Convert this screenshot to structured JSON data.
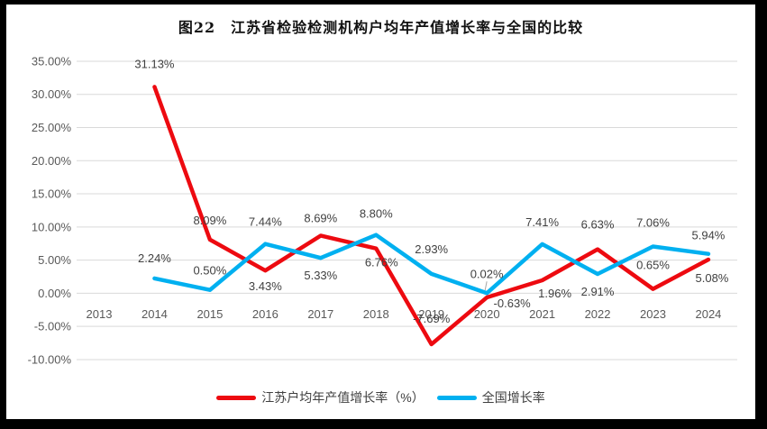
{
  "title": "图22　江苏省检验检测机构户均年产值增长率与全国的比较",
  "legend": {
    "items": [
      {
        "label": "江苏户均年产值增长率（%）",
        "color": "#ed0a10",
        "name": "jiangsu-series"
      },
      {
        "label": "全国增长率",
        "color": "#00b0f0",
        "name": "national-series"
      }
    ]
  },
  "colors": {
    "gridline": "#d9d9d9",
    "axis_text": "#595959",
    "data_label_text": "#404040",
    "frame_border": "#000000",
    "background": "#ffffff"
  },
  "chart_data": {
    "type": "line",
    "title": "图22　江苏省检验检测机构户均年产值增长率与全国的比较",
    "categories": [
      "2013",
      "2014",
      "2015",
      "2016",
      "2017",
      "2018",
      "2019",
      "2020",
      "2021",
      "2022",
      "2023",
      "2024"
    ],
    "xlabel": "",
    "ylabel": "",
    "unit": "%",
    "y_axis": {
      "min": -10,
      "max": 35,
      "step": 5,
      "tick_labels": [
        "35.00%",
        "30.00%",
        "25.00%",
        "20.00%",
        "15.00%",
        "10.00%",
        "5.00%",
        "0.00%",
        "-5.00%",
        "-10.00%"
      ]
    },
    "grid": true,
    "legend_position": "bottom",
    "series": [
      {
        "name": "江苏户均年产值增长率（%）",
        "color": "#ed0a10",
        "values": [
          null,
          31.13,
          8.09,
          3.43,
          8.69,
          6.76,
          -7.69,
          -0.63,
          1.96,
          6.63,
          0.65,
          5.08
        ],
        "labels": [
          "",
          "31.13%",
          "8.09%",
          "3.43%",
          "8.69%",
          "6.76%",
          "-7.69%",
          "-0.63%",
          "1.96%",
          "6.63%",
          "0.65%",
          "5.08%"
        ],
        "label_offsets": [
          [
            0,
            0
          ],
          [
            0,
            -21
          ],
          [
            0,
            -17
          ],
          [
            0,
            22
          ],
          [
            0,
            -15
          ],
          [
            6,
            20
          ],
          [
            0,
            -24
          ],
          [
            28,
            11
          ],
          [
            14,
            19
          ],
          [
            0,
            -23
          ],
          [
            0,
            -22
          ],
          [
            4,
            25
          ]
        ]
      },
      {
        "name": "全国增长率",
        "color": "#00b0f0",
        "values": [
          null,
          2.24,
          0.5,
          7.44,
          5.33,
          8.8,
          2.93,
          0.02,
          7.41,
          2.91,
          7.06,
          5.94
        ],
        "labels": [
          "",
          "2.24%",
          "0.50%",
          "7.44%",
          "5.33%",
          "8.80%",
          "2.93%",
          "0.02%",
          "7.41%",
          "2.91%",
          "7.06%",
          "5.94%"
        ],
        "label_offsets": [
          [
            0,
            0
          ],
          [
            0,
            -18
          ],
          [
            0,
            -17
          ],
          [
            0,
            -20
          ],
          [
            0,
            24
          ],
          [
            0,
            -19
          ],
          [
            0,
            -23
          ],
          [
            0,
            -17
          ],
          [
            0,
            -20
          ],
          [
            0,
            24
          ],
          [
            0,
            -22
          ],
          [
            0,
            -16
          ]
        ]
      }
    ],
    "annotations": [
      {
        "type": "leader-line",
        "series": 1,
        "index": 7
      }
    ]
  }
}
